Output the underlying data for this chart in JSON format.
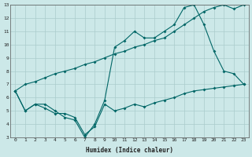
{
  "xlabel": "Humidex (Indice chaleur)",
  "bg_color": "#cce8e8",
  "grid_color": "#aacccc",
  "line_color": "#006666",
  "xlim": [
    -0.5,
    23.5
  ],
  "ylim": [
    3,
    13
  ],
  "xticks": [
    0,
    1,
    2,
    3,
    4,
    5,
    6,
    7,
    8,
    9,
    10,
    11,
    12,
    13,
    14,
    15,
    16,
    17,
    18,
    19,
    20,
    21,
    22,
    23
  ],
  "yticks": [
    3,
    4,
    5,
    6,
    7,
    8,
    9,
    10,
    11,
    12,
    13
  ],
  "line1_x": [
    0,
    1,
    2,
    3,
    4,
    5,
    6,
    7,
    8,
    9,
    10,
    11,
    12,
    13,
    14,
    15,
    16,
    17,
    18,
    19,
    20,
    21,
    22,
    23
  ],
  "line1_y": [
    6.5,
    7.0,
    7.2,
    7.5,
    7.8,
    8.0,
    8.2,
    8.5,
    8.7,
    9.0,
    9.3,
    9.5,
    9.8,
    10.0,
    10.3,
    10.5,
    11.0,
    11.5,
    12.0,
    12.5,
    12.8,
    13.0,
    12.7,
    13.0
  ],
  "line2_x": [
    0,
    1,
    2,
    3,
    4,
    5,
    6,
    7,
    8,
    9,
    10,
    11,
    12,
    13,
    14,
    15,
    16,
    17,
    18,
    19,
    20,
    21,
    22,
    23
  ],
  "line2_y": [
    6.5,
    5.0,
    5.5,
    5.5,
    5.0,
    4.5,
    4.3,
    3.0,
    4.0,
    5.8,
    9.8,
    10.3,
    11.0,
    10.5,
    10.5,
    11.0,
    11.5,
    12.8,
    13.0,
    11.5,
    9.5,
    8.0,
    7.8,
    7.0
  ],
  "line3_x": [
    0,
    1,
    2,
    3,
    4,
    5,
    6,
    7,
    8,
    9,
    10,
    11,
    12,
    13,
    14,
    15,
    16,
    17,
    18,
    19,
    20,
    21,
    22,
    23
  ],
  "line3_y": [
    6.5,
    5.0,
    5.5,
    5.2,
    4.8,
    4.8,
    4.5,
    3.2,
    3.8,
    5.5,
    5.0,
    5.2,
    5.5,
    5.3,
    5.6,
    5.8,
    6.0,
    6.3,
    6.5,
    6.6,
    6.7,
    6.8,
    6.9,
    7.0
  ]
}
